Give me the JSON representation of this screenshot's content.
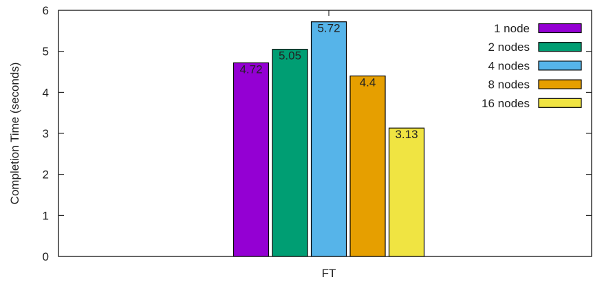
{
  "chart_data": {
    "type": "bar",
    "categories": [
      "FT"
    ],
    "series": [
      {
        "name": "1 node",
        "values": [
          4.72
        ],
        "color": "#9400d3",
        "label": "4.72"
      },
      {
        "name": "2 nodes",
        "values": [
          5.05
        ],
        "color": "#009e73",
        "label": "5.05"
      },
      {
        "name": "4 nodes",
        "values": [
          5.72
        ],
        "color": "#56b4e9",
        "label": "5.72"
      },
      {
        "name": "8 nodes",
        "values": [
          4.4
        ],
        "color": "#e69f00",
        "label": "4.4"
      },
      {
        "name": "16 nodes",
        "values": [
          3.13
        ],
        "color": "#f0e442",
        "label": "3.13"
      }
    ],
    "title": "",
    "xlabel": "",
    "ylabel": "Completion Time (seconds)",
    "ylim": [
      0,
      6
    ],
    "yticks": [
      "0",
      "1",
      "2",
      "3",
      "4",
      "5",
      "6"
    ],
    "grid": false,
    "legend_position": "top-right"
  }
}
